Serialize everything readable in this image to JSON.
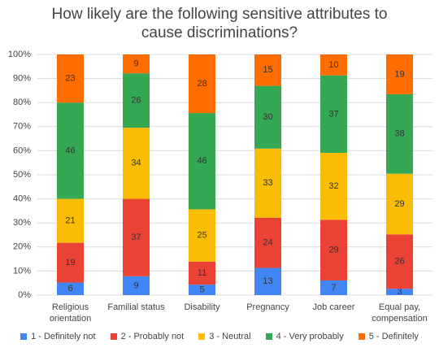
{
  "chart_data": {
    "type": "bar",
    "stacking": "percent",
    "title": "How likely are the following sensitive attributes to cause discriminations?",
    "categories": [
      "Religious orientation",
      "Familial status",
      "Disability",
      "Pregnancy",
      "Job career",
      "Equal pay, compensation"
    ],
    "series": [
      {
        "name": "1 - Definitely not",
        "color": "#4285f4",
        "values": [
          6,
          9,
          5,
          13,
          7,
          3
        ]
      },
      {
        "name": "2 - Probably not",
        "color": "#ea4335",
        "values": [
          19,
          37,
          11,
          24,
          29,
          26
        ]
      },
      {
        "name": "3 - Neutral",
        "color": "#fbbc04",
        "values": [
          21,
          34,
          25,
          33,
          32,
          29
        ]
      },
      {
        "name": "4 - Very probably",
        "color": "#34a853",
        "values": [
          46,
          26,
          46,
          30,
          37,
          38
        ]
      },
      {
        "name": "5 - Definitely",
        "color": "#ff6d01",
        "values": [
          23,
          9,
          28,
          15,
          10,
          19
        ]
      }
    ],
    "ylim": [
      0,
      100
    ],
    "yticks": [
      {
        "value": 0,
        "label": "0%"
      },
      {
        "value": 10,
        "label": "10%"
      },
      {
        "value": 20,
        "label": "20%"
      },
      {
        "value": 30,
        "label": "30%"
      },
      {
        "value": 40,
        "label": "40%"
      },
      {
        "value": 50,
        "label": "50%"
      },
      {
        "value": 60,
        "label": "60%"
      },
      {
        "value": 70,
        "label": "70%"
      },
      {
        "value": 80,
        "label": "80%"
      },
      {
        "value": 90,
        "label": "90%"
      },
      {
        "value": 100,
        "label": "100%"
      }
    ],
    "grid": true
  }
}
